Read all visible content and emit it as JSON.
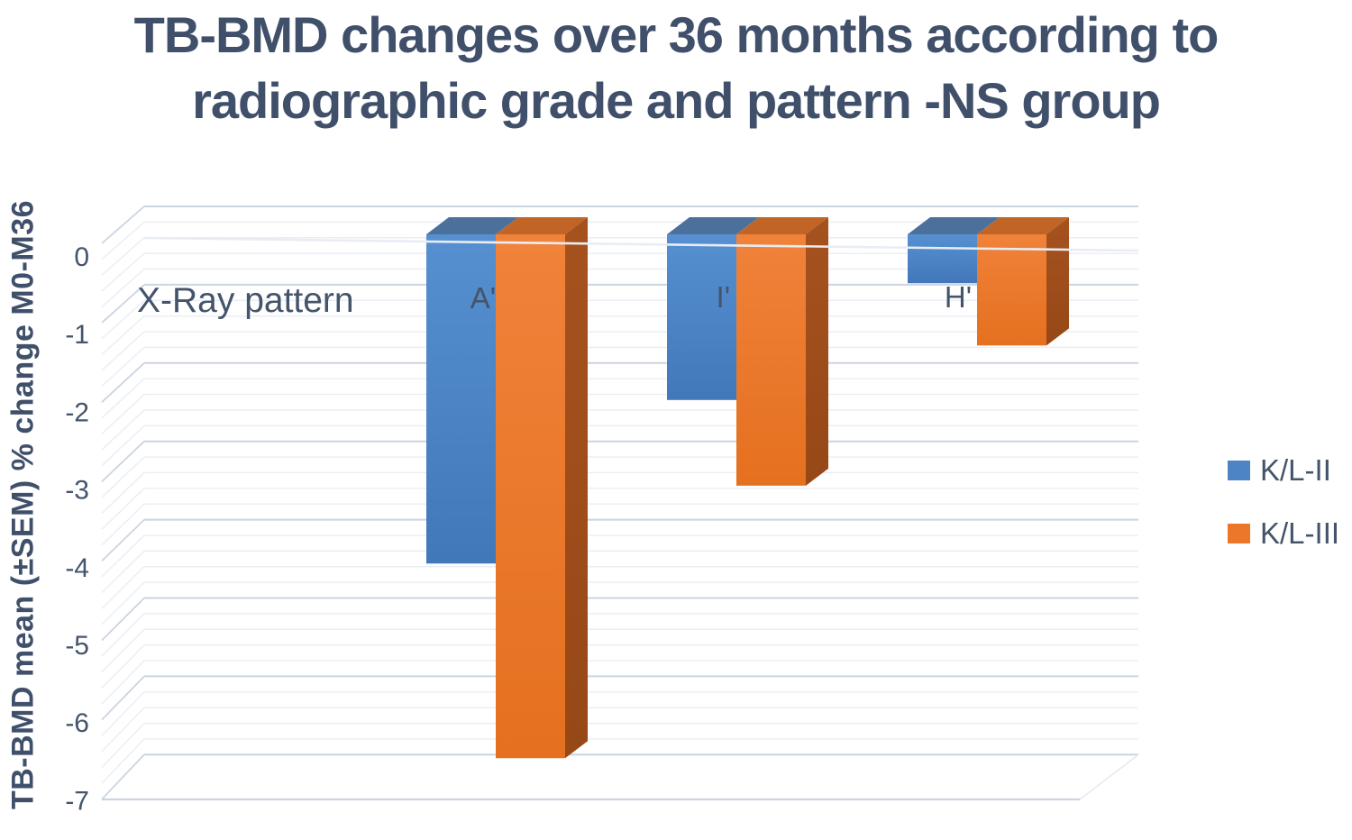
{
  "title": {
    "line1": "TB-BMD changes over 36 months according to",
    "line2": "radiographic grade and pattern -NS group"
  },
  "annotation": "X-Ray pattern",
  "chart_data": {
    "type": "bar",
    "style": "3d-clustered-column",
    "title": "TB-BMD changes over 36 months according to radiographic grade and pattern -NS group",
    "xlabel": "X-Ray pattern",
    "ylabel": "TB-BMD mean (±SEM) % change M0-M36",
    "categories": [
      "A'",
      "I'",
      "H'"
    ],
    "series": [
      {
        "name": "K/L-II",
        "color": "#4C84C5",
        "values": [
          -4.1,
          -2.0,
          -0.5
        ]
      },
      {
        "name": "K/L-III",
        "color": "#EC7728",
        "values": [
          -6.6,
          -3.1,
          -1.3
        ]
      }
    ],
    "ylim": [
      -7,
      0
    ],
    "yticks": [
      0,
      -1,
      -2,
      -3,
      -4,
      -5,
      -6,
      -7
    ],
    "minor_grid_step": 0.2,
    "grid": true,
    "legend_position": "right"
  }
}
